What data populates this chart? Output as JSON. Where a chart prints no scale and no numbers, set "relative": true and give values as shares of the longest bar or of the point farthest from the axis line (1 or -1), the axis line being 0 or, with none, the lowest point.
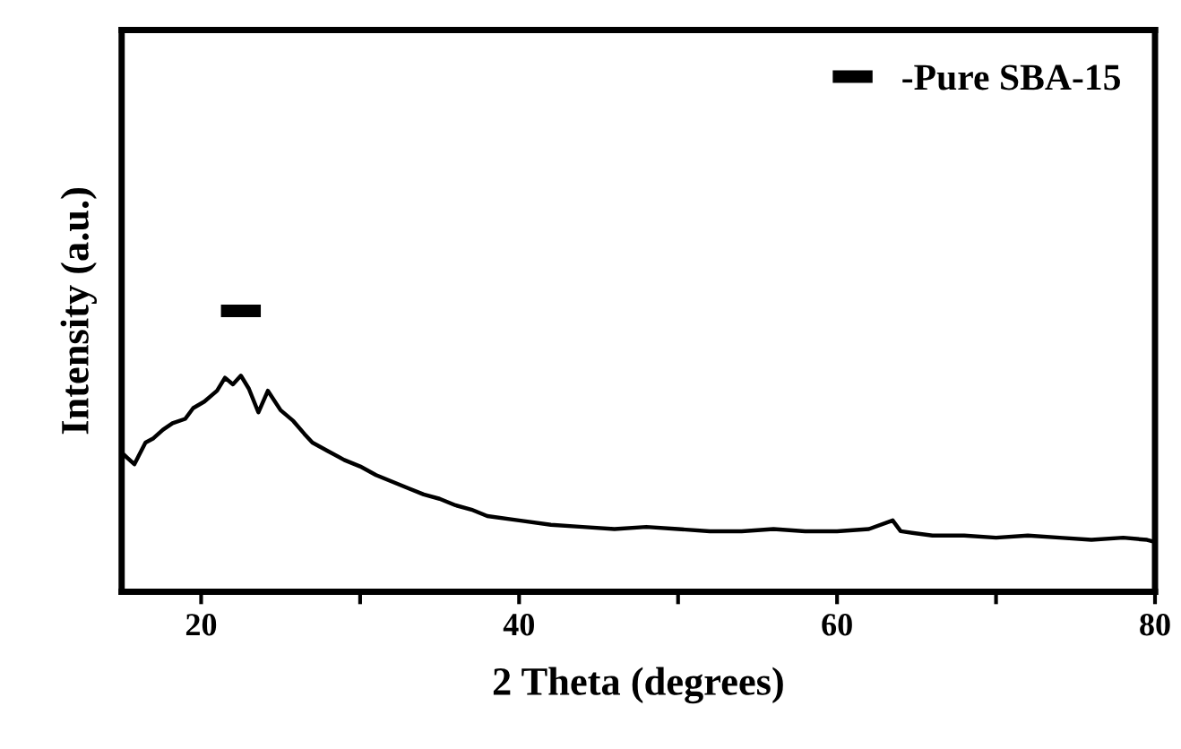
{
  "chart_data": {
    "type": "line",
    "relative": true,
    "xlabel": "2 Theta (degrees)",
    "ylabel": "Intensity (a.u.)",
    "xlim": [
      15,
      80
    ],
    "xticks": [
      20,
      {
        "value": 30,
        "label": null
      },
      40,
      {
        "value": 50,
        "label": null
      },
      60,
      {
        "value": 70,
        "label": null
      },
      80
    ],
    "tick_labels": "x",
    "grid": false,
    "legend": "top right",
    "series": [
      {
        "name": "-Pure SBA-15",
        "color": "#000000",
        "x": [
          15.2,
          15.8,
          16.5,
          17,
          17.6,
          18.2,
          19,
          19.5,
          20.2,
          21,
          21.5,
          22,
          22.5,
          23,
          23.6,
          24.2,
          25,
          25.8,
          26.5,
          27,
          28,
          29,
          30,
          31,
          32,
          33,
          34,
          35,
          36,
          37,
          38,
          40,
          42,
          44,
          46,
          48,
          50,
          52,
          54,
          56,
          58,
          60,
          62,
          63.5,
          64,
          66,
          68,
          70,
          72,
          74,
          76,
          78,
          79.5,
          80
        ],
        "values": [
          0.63,
          0.59,
          0.69,
          0.71,
          0.75,
          0.78,
          0.8,
          0.85,
          0.88,
          0.93,
          0.99,
          0.96,
          1,
          0.94,
          0.83,
          0.93,
          0.84,
          0.79,
          0.73,
          0.69,
          0.65,
          0.61,
          0.58,
          0.54,
          0.51,
          0.48,
          0.45,
          0.43,
          0.4,
          0.38,
          0.35,
          0.33,
          0.31,
          0.3,
          0.29,
          0.3,
          0.29,
          0.28,
          0.28,
          0.29,
          0.28,
          0.28,
          0.29,
          0.33,
          0.28,
          0.26,
          0.26,
          0.25,
          0.26,
          0.25,
          0.24,
          0.25,
          0.24,
          0.23
        ]
      }
    ]
  }
}
